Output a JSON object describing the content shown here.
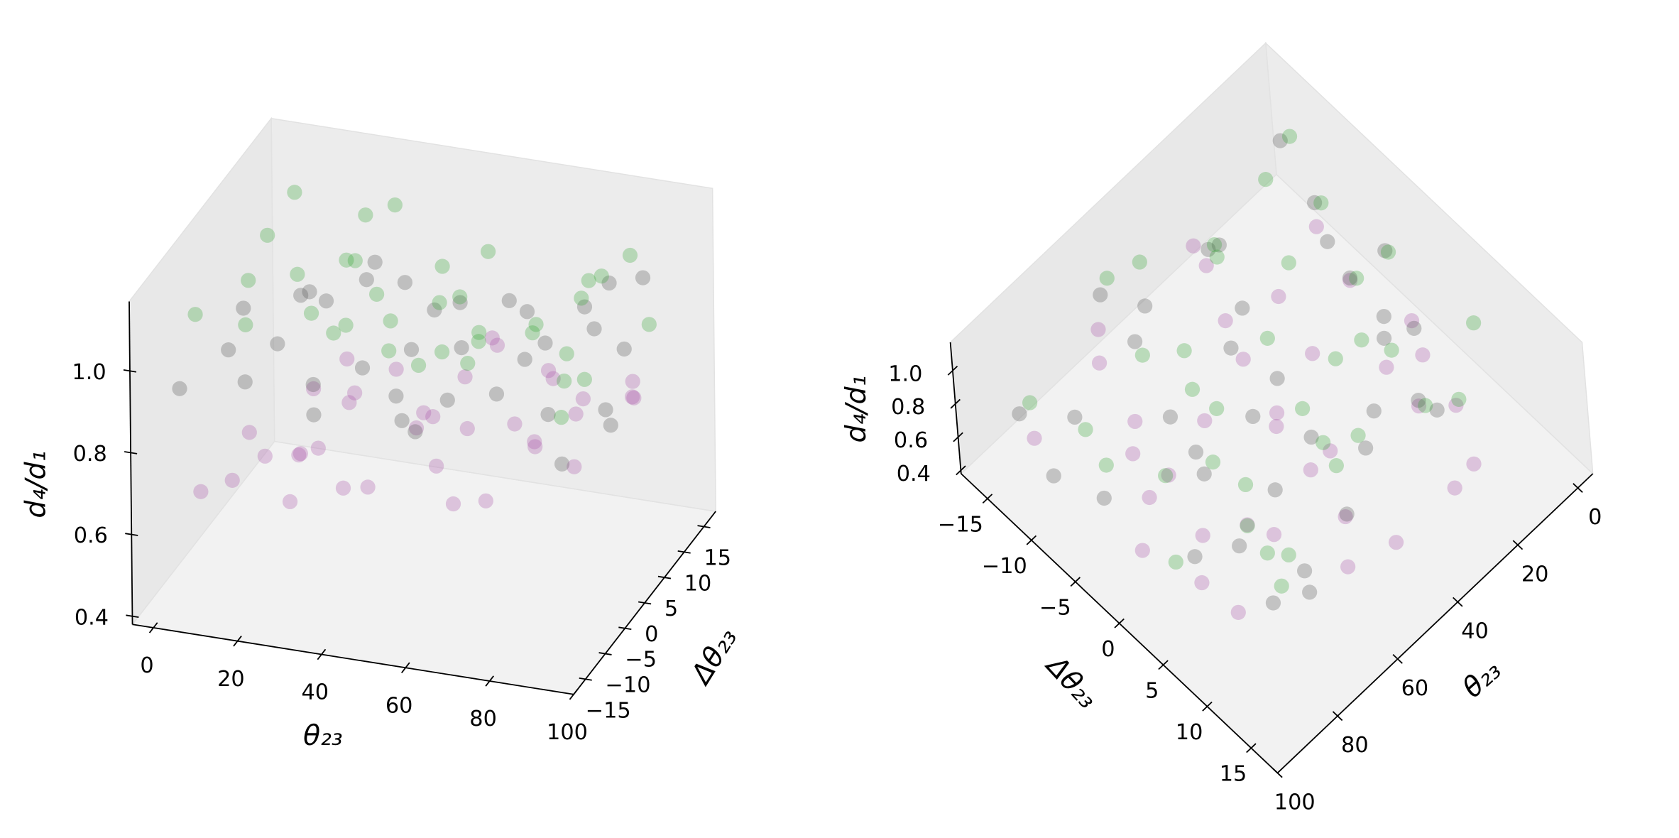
{
  "chart_data": [
    {
      "type": "scatter3d",
      "xlabel": "θ₂₃",
      "ylabel": "Δθ₂₃",
      "zlabel": "d₄/d₁",
      "xlim": [
        -5,
        100
      ],
      "ylim": [
        -18,
        18
      ],
      "zlim": [
        0.38,
        1.17
      ],
      "xticks": [
        0,
        20,
        40,
        60,
        80,
        100
      ],
      "yticks": [
        {
          "value": -15,
          "label": "−15"
        },
        {
          "value": -10,
          "label": "−10"
        },
        {
          "value": -5,
          "label": "−5"
        },
        0,
        5,
        10,
        15
      ],
      "zticks": [
        0.4,
        0.6,
        0.8,
        {
          "value": 1,
          "label": "1.0"
        }
      ],
      "series": [
        {
          "color": "#a64ca6",
          "x": [
            4,
            10,
            16,
            22,
            28,
            34,
            40,
            46,
            52,
            58,
            64,
            70,
            76,
            82,
            88,
            94,
            7,
            13,
            25,
            31,
            43,
            55,
            67,
            79,
            91,
            19,
            37,
            49,
            61,
            73,
            85,
            2,
            30,
            50,
            70,
            96
          ],
          "y": [
            -10,
            -4,
            2,
            8,
            14,
            -12,
            -6,
            0,
            6,
            12,
            -14,
            -8,
            -2,
            4,
            10,
            -11,
            3,
            9,
            -7,
            -1,
            5,
            11,
            -13,
            -5,
            7,
            13,
            -9,
            1,
            -3,
            6,
            -1,
            0,
            -15,
            15,
            8,
            2
          ],
          "z": [
            0.62,
            0.7,
            0.58,
            0.75,
            0.66,
            0.8,
            0.64,
            0.72,
            0.78,
            0.6,
            0.83,
            0.68,
            0.76,
            0.8,
            0.74,
            0.84,
            0.55,
            0.65,
            0.71,
            0.77,
            0.69,
            0.8,
            0.73,
            0.79,
            0.82,
            0.6,
            0.67,
            0.74,
            0.78,
            0.81,
            0.83,
            0.52,
            0.7,
            0.76,
            0.8,
            0.85
          ]
        },
        {
          "color": "#4a4a4a",
          "x": [
            3,
            9,
            15,
            21,
            27,
            33,
            39,
            45,
            51,
            57,
            63,
            69,
            75,
            81,
            87,
            93,
            99,
            6,
            14,
            24,
            32,
            46,
            56,
            66,
            74,
            86,
            94,
            18,
            42,
            60,
            78,
            11,
            36,
            54,
            72,
            90
          ],
          "y": [
            -14,
            -8,
            -2,
            4,
            10,
            -12,
            -6,
            0,
            6,
            12,
            -10,
            -4,
            2,
            8,
            14,
            -13,
            -7,
            -1,
            5,
            11,
            -11,
            -5,
            1,
            7,
            13,
            -9,
            -3,
            3,
            9,
            -15,
            15,
            -6,
            8,
            -12,
            0,
            6
          ],
          "z": [
            0.92,
            0.95,
            0.9,
            0.94,
            0.97,
            0.88,
            0.93,
            0.91,
            0.96,
            0.9,
            0.94,
            0.89,
            0.95,
            0.92,
            0.98,
            0.87,
            0.9,
            0.96,
            0.93,
            0.91,
            0.94,
            0.86,
            0.92,
            0.95,
            0.9,
            0.93,
            0.88,
            0.97,
            0.89,
            0.92,
            0.94,
            0.85,
            0.96,
            0.9,
            0.93,
            0.91
          ]
        },
        {
          "color": "#2ca02c",
          "x": [
            5,
            12,
            18,
            24,
            30,
            36,
            42,
            48,
            54,
            60,
            66,
            72,
            78,
            84,
            90,
            96,
            8,
            16,
            26,
            34,
            44,
            52,
            62,
            70,
            80,
            88,
            10,
            22,
            38,
            50,
            64,
            76,
            92,
            28,
            58,
            82
          ],
          "y": [
            -12,
            -6,
            0,
            6,
            12,
            -10,
            -2,
            4,
            10,
            -14,
            -8,
            2,
            8,
            14,
            -4,
            6,
            10,
            -11,
            -5,
            3,
            9,
            -13,
            -1,
            5,
            11,
            -7,
            1,
            13,
            -9,
            7,
            -3,
            12,
            -12,
            4,
            -6,
            0
          ],
          "z": [
            1.08,
            1.1,
            1.05,
            1.02,
            1.09,
            1.06,
            1.0,
            0.98,
            1.04,
            1.07,
            1.01,
            0.97,
            0.99,
            1.03,
            0.96,
            0.98,
            1.11,
            1.06,
            1.03,
            0.99,
            1.0,
            1.08,
            0.97,
            0.95,
            1.01,
            0.99,
            1.12,
            1.04,
            1.07,
            0.96,
            1.02,
            0.98,
            0.97,
            1.05,
            1.0,
            0.96
          ]
        }
      ]
    },
    {
      "type": "scatter3d",
      "xlabel": "θ₂₃",
      "ylabel": "Δθ₂₃",
      "zlabel": "d₄/d₁",
      "xlim": [
        -5,
        100
      ],
      "ylim": [
        -18,
        18
      ],
      "zlim": [
        0.38,
        1.17
      ],
      "xticks": [
        0,
        20,
        40,
        60,
        80,
        100
      ],
      "yticks": [
        {
          "value": -15,
          "label": "−15"
        },
        {
          "value": -10,
          "label": "−10"
        },
        {
          "value": -5,
          "label": "−5"
        },
        0,
        5,
        10,
        15
      ],
      "zticks": [
        0.4,
        0.6,
        0.8,
        {
          "value": 1,
          "label": "1.0"
        }
      ]
    }
  ]
}
